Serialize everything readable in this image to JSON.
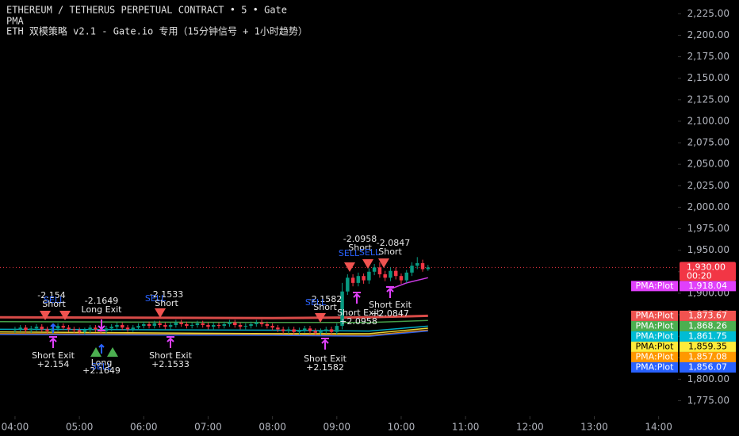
{
  "chart_data": {
    "type": "candlestick",
    "title": "ETHEREUM / TETHERUS PERPETUAL CONTRACT • 5 • Gate",
    "indicator": "PMA",
    "subtitle": "ETH 双模策略 v2.1 - Gate.io 专用（15分钟信号 + 1小时趋势）",
    "up_color": "#089981",
    "down_color": "#f23645",
    "xlim": [
      226,
      858
    ],
    "ylim": [
      1757,
      2241
    ],
    "xticks": [
      {
        "value": 240,
        "label": "04:00"
      },
      {
        "value": 300,
        "label": "05:00"
      },
      {
        "value": 360,
        "label": "06:00"
      },
      {
        "value": 420,
        "label": "07:00"
      },
      {
        "value": 480,
        "label": "08:00"
      },
      {
        "value": 540,
        "label": "09:00"
      },
      {
        "value": 600,
        "label": "10:00"
      },
      {
        "value": 660,
        "label": "11:00"
      },
      {
        "value": 720,
        "label": "12:00"
      },
      {
        "value": 780,
        "label": "13:00"
      },
      {
        "value": 840,
        "label": "14:00"
      }
    ],
    "yticks": [
      {
        "value": 2225,
        "label": "2,225.00"
      },
      {
        "value": 2200,
        "label": "2,200.00"
      },
      {
        "value": 2175,
        "label": "2,175.00"
      },
      {
        "value": 2150,
        "label": "2,150.00"
      },
      {
        "value": 2125,
        "label": "2,125.00"
      },
      {
        "value": 2100,
        "label": "2,100.00"
      },
      {
        "value": 2075,
        "label": "2,075.00"
      },
      {
        "value": 2050,
        "label": "2,050.00"
      },
      {
        "value": 2025,
        "label": "2,025.00"
      },
      {
        "value": 2000,
        "label": "2,000.00"
      },
      {
        "value": 1975,
        "label": "1,975.00"
      },
      {
        "value": 1950,
        "label": "1,950.00"
      },
      {
        "value": 1925,
        "label": "1,925.00"
      },
      {
        "value": 1900,
        "label": "1,900.00"
      },
      {
        "value": 1875,
        "label": "1,875.00"
      },
      {
        "value": 1850,
        "label": "1,850.00"
      },
      {
        "value": 1825,
        "label": "1,825.00"
      },
      {
        "value": 1800,
        "label": "1,800.00"
      },
      {
        "value": 1775,
        "label": "1,775.00"
      }
    ],
    "x": [
      240,
      245,
      250,
      255,
      260,
      265,
      270,
      275,
      280,
      285,
      290,
      295,
      300,
      305,
      310,
      315,
      320,
      325,
      330,
      335,
      340,
      345,
      350,
      355,
      360,
      365,
      370,
      375,
      380,
      385,
      390,
      395,
      400,
      405,
      410,
      415,
      420,
      425,
      430,
      435,
      440,
      445,
      450,
      455,
      460,
      465,
      470,
      475,
      480,
      485,
      490,
      495,
      500,
      505,
      510,
      515,
      520,
      525,
      530,
      535,
      540,
      545,
      550,
      555,
      560,
      565,
      570,
      575,
      580,
      585,
      590,
      595,
      600,
      605,
      610,
      615,
      620,
      625
    ],
    "open": [
      1857,
      1858,
      1860,
      1857,
      1859,
      1861,
      1858,
      1856,
      1859,
      1862,
      1860,
      1858,
      1857,
      1855,
      1857,
      1860,
      1858,
      1856,
      1859,
      1861,
      1863,
      1860,
      1858,
      1860,
      1862,
      1864,
      1862,
      1865,
      1863,
      1861,
      1863,
      1866,
      1864,
      1862,
      1863,
      1865,
      1863,
      1861,
      1863,
      1862,
      1864,
      1866,
      1863,
      1861,
      1862,
      1864,
      1866,
      1864,
      1862,
      1860,
      1858,
      1856,
      1858,
      1855,
      1857,
      1859,
      1856,
      1854,
      1856,
      1858,
      1855,
      1862,
      1902,
      1918,
      1912,
      1920,
      1915,
      1925,
      1930,
      1922,
      1918,
      1926,
      1920,
      1915,
      1924,
      1932,
      1935,
      1928
    ],
    "high": [
      1861,
      1863,
      1863,
      1862,
      1864,
      1864,
      1861,
      1862,
      1865,
      1865,
      1863,
      1861,
      1860,
      1860,
      1863,
      1863,
      1861,
      1862,
      1864,
      1866,
      1866,
      1863,
      1863,
      1865,
      1867,
      1867,
      1868,
      1868,
      1866,
      1866,
      1869,
      1869,
      1867,
      1866,
      1868,
      1868,
      1866,
      1866,
      1866,
      1867,
      1869,
      1869,
      1866,
      1865,
      1867,
      1869,
      1869,
      1867,
      1865,
      1863,
      1861,
      1861,
      1861,
      1860,
      1862,
      1862,
      1859,
      1859,
      1861,
      1861,
      1865,
      1912,
      1922,
      1922,
      1924,
      1923,
      1929,
      1934,
      1936,
      1926,
      1930,
      1930,
      1923,
      1927,
      1936,
      1942,
      1939,
      1933
    ],
    "low": [
      1854,
      1855,
      1854,
      1854,
      1856,
      1855,
      1853,
      1853,
      1856,
      1857,
      1855,
      1854,
      1852,
      1852,
      1854,
      1855,
      1853,
      1853,
      1856,
      1858,
      1857,
      1855,
      1855,
      1857,
      1859,
      1859,
      1859,
      1860,
      1858,
      1858,
      1860,
      1861,
      1859,
      1859,
      1860,
      1860,
      1858,
      1858,
      1859,
      1859,
      1861,
      1860,
      1858,
      1858,
      1859,
      1861,
      1861,
      1859,
      1857,
      1855,
      1853,
      1853,
      1852,
      1852,
      1854,
      1853,
      1851,
      1851,
      1853,
      1852,
      1852,
      1858,
      1898,
      1908,
      1908,
      1911,
      1911,
      1921,
      1918,
      1914,
      1914,
      1916,
      1911,
      1912,
      1920,
      1928,
      1925,
      1926
    ],
    "close": [
      1858,
      1860,
      1857,
      1859,
      1861,
      1858,
      1856,
      1859,
      1862,
      1860,
      1858,
      1857,
      1855,
      1857,
      1860,
      1858,
      1856,
      1859,
      1861,
      1863,
      1860,
      1858,
      1860,
      1862,
      1864,
      1862,
      1865,
      1863,
      1861,
      1863,
      1866,
      1864,
      1862,
      1863,
      1865,
      1863,
      1861,
      1863,
      1862,
      1864,
      1866,
      1863,
      1861,
      1862,
      1864,
      1866,
      1864,
      1862,
      1860,
      1858,
      1856,
      1858,
      1855,
      1857,
      1859,
      1856,
      1854,
      1856,
      1858,
      1855,
      1862,
      1902,
      1918,
      1912,
      1920,
      1915,
      1925,
      1930,
      1922,
      1918,
      1926,
      1920,
      1915,
      1924,
      1932,
      1935,
      1928,
      1930
    ],
    "last_price": {
      "value": 1930,
      "label": "1,930.00"
    },
    "countdown": "00:20",
    "series": [
      {
        "name": "PMA:Plot",
        "color": "#e040fb",
        "x": [
          590,
          605,
          625
        ],
        "values": [
          1905,
          1912,
          1918.04
        ],
        "value_labels": [
          "1,918.04"
        ]
      },
      {
        "name": "PMA:Plot",
        "color": "#f05350",
        "x": [
          226,
          480,
          570,
          625
        ],
        "values": [
          1872,
          1871,
          1872,
          1873.67
        ],
        "value_labels": [
          "1,873.67"
        ]
      },
      {
        "name": "PMA:Plot",
        "color": "#4caf50",
        "x": [
          226,
          480,
          570,
          625
        ],
        "values": [
          1867,
          1866,
          1866,
          1868.26
        ],
        "value_labels": [
          "1,868.26"
        ]
      },
      {
        "name": "PMA:Plot",
        "color": "#00bcd4",
        "x": [
          226,
          480,
          570,
          625
        ],
        "values": [
          1858,
          1857,
          1856,
          1861.75
        ],
        "value_labels": [
          "1,861.75"
        ]
      },
      {
        "name": "PMA:Plot",
        "color": "#ffeb3b",
        "x": [
          226,
          480,
          570,
          625
        ],
        "values": [
          1855,
          1853,
          1853,
          1859.35
        ],
        "value_labels": [
          "1,859.35"
        ]
      },
      {
        "name": "PMA:Plot",
        "color": "#ff9800",
        "x": [
          226,
          480,
          570,
          625
        ],
        "values": [
          1853,
          1852,
          1851,
          1857.08
        ],
        "value_labels": [
          "1,857.08"
        ]
      },
      {
        "name": "PMA:Plot",
        "color": "#2962ff",
        "x": [
          226,
          480,
          570,
          625
        ],
        "values": [
          1852,
          1851,
          1850,
          1856.07
        ],
        "value_labels": [
          "1,856.07"
        ]
      }
    ],
    "signal_labels": [
      "-2.154",
      "SELL",
      "Short",
      "Short Exit",
      "+2.154",
      "-2.1649",
      "Long Exit",
      "SELL",
      "Long",
      "+2.1649",
      "-2.1533",
      "SELL",
      "Short",
      "Short Exit",
      "+2.1533",
      "-2.1582",
      "SELL",
      "Short",
      "Short Exit",
      "+2.1582",
      "Short Exit",
      "+2.0958",
      "-2.0958",
      "Short",
      "SELL",
      "SELL",
      "-2.0847",
      "Short",
      "Short Exit",
      "+2.0847"
    ]
  }
}
